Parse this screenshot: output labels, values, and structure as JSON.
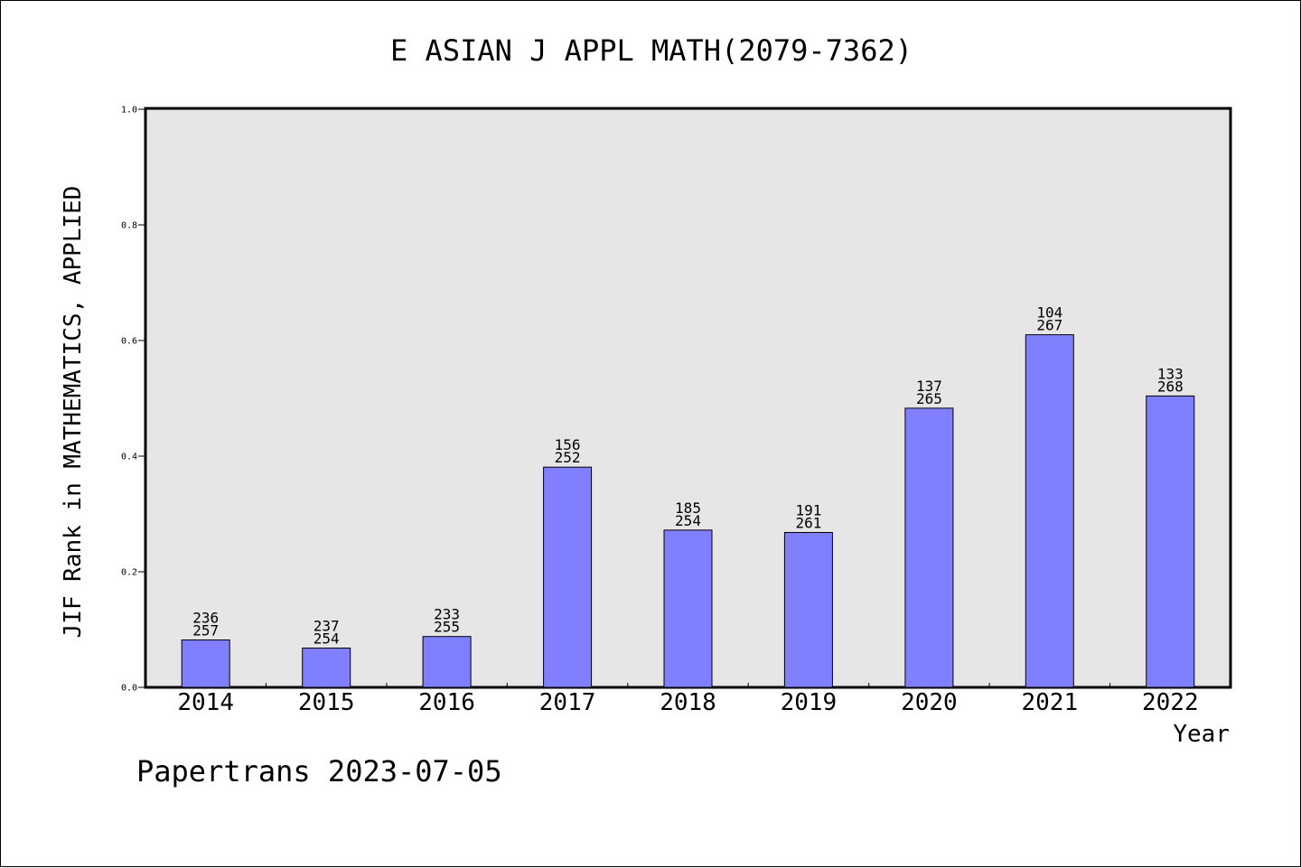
{
  "chart_data": {
    "type": "bar",
    "title": "E ASIAN J APPL MATH(2079-7362)",
    "xlabel": "Year",
    "ylabel": "JIF Rank in MATHEMATICS, APPLIED",
    "ylim": [
      0,
      1.0
    ],
    "yticks": [
      "0.0",
      "0.2",
      "0.4",
      "0.6",
      "0.8",
      "1.0"
    ],
    "categories": [
      "2014",
      "2015",
      "2016",
      "2017",
      "2018",
      "2019",
      "2020",
      "2021",
      "2022"
    ],
    "values": [
      0.082,
      0.068,
      0.088,
      0.381,
      0.272,
      0.268,
      0.483,
      0.61,
      0.504
    ],
    "rank": [
      "236",
      "237",
      "233",
      "156",
      "185",
      "191",
      "137",
      "104",
      "133"
    ],
    "total": [
      "257",
      "254",
      "255",
      "252",
      "254",
      "261",
      "265",
      "267",
      "268"
    ],
    "bar_color": "#8080ff",
    "plot_background": "#e6e6e6",
    "grid": false
  },
  "footer": "Papertrans 2023-07-05"
}
